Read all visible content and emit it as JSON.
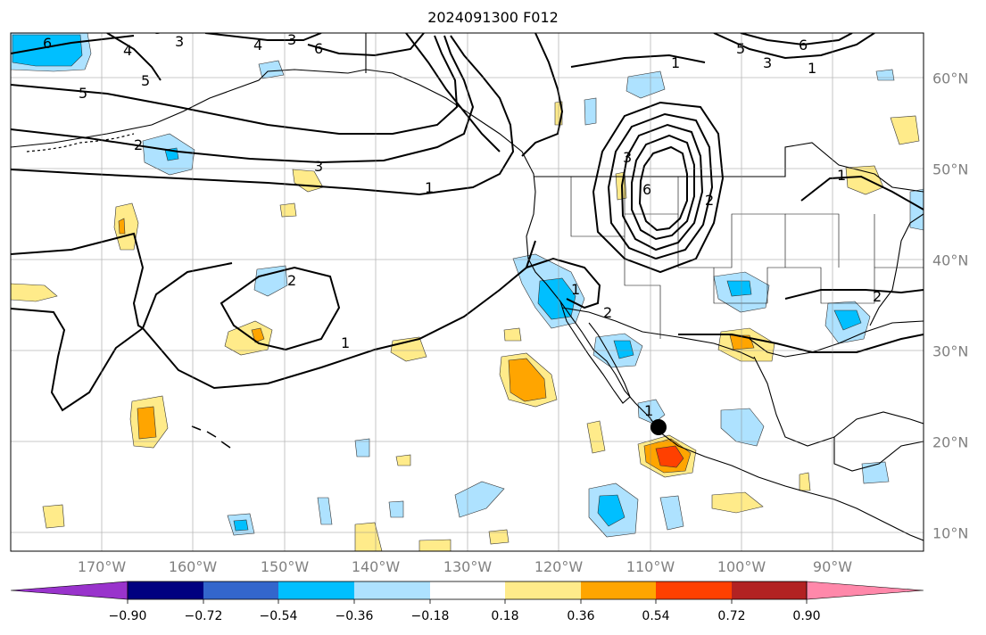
{
  "title": "2024091300 F012",
  "lon_labels": [
    "170°W",
    "160°W",
    "150°W",
    "140°W",
    "130°W",
    "120°W",
    "110°W",
    "100°W",
    "90°W"
  ],
  "lat_labels": [
    "60°N",
    "50°N",
    "40°N",
    "30°N",
    "20°N",
    "10°N"
  ],
  "colorbar": {
    "ticks": [
      "−0.90",
      "−0.72",
      "−0.54",
      "−0.36",
      "−0.18",
      "0.18",
      "0.36",
      "0.54",
      "0.72",
      "0.90"
    ],
    "colors": [
      "#9933cc",
      "#000080",
      "#3366cc",
      "#00bfff",
      "#aee2ff",
      "#ffffff",
      "#ffeb8a",
      "#ffa500",
      "#ff4000",
      "#b22222",
      "#ff88aa"
    ]
  },
  "contour_labels": [
    "6",
    "4",
    "3",
    "6",
    "3",
    "5",
    "4",
    "5",
    "2",
    "3",
    "1",
    "3",
    "1",
    "2",
    "1",
    "2",
    "3",
    "6",
    "1",
    "2",
    "2",
    "1",
    "5",
    "6",
    "3",
    "1",
    "1"
  ],
  "marker": "storm-center"
}
